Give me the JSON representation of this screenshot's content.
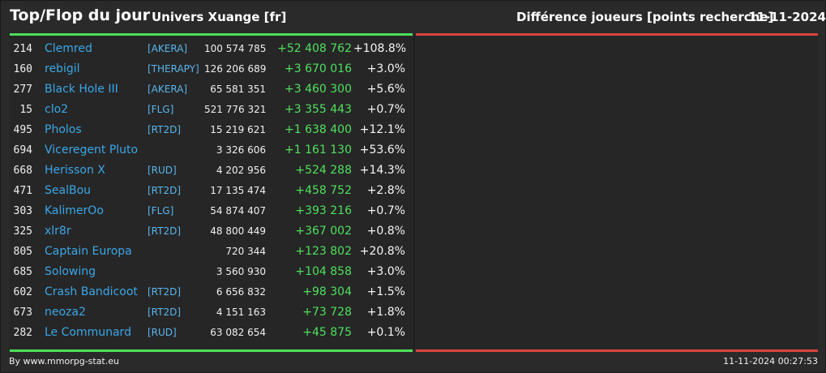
{
  "header": {
    "title": "Top/Flop du jour",
    "universe": "Univers Xuange [fr]",
    "metric": "Différence joueurs [points recherche]",
    "date": "11-11-2024"
  },
  "rows": [
    {
      "rank": "214",
      "name": "Clemred",
      "tag": "[AKERA]",
      "points": "100 574 785",
      "diff": "+52 408 762",
      "pct": "+108.8%"
    },
    {
      "rank": "160",
      "name": "rebigil",
      "tag": "[THERAPY]",
      "points": "126 206 689",
      "diff": "+3 670 016",
      "pct": "+3.0%"
    },
    {
      "rank": "277",
      "name": "Black Hole III",
      "tag": "[AKERA]",
      "points": "65 581 351",
      "diff": "+3 460 300",
      "pct": "+5.6%"
    },
    {
      "rank": "15",
      "name": "clo2",
      "tag": "[FLG]",
      "points": "521 776 321",
      "diff": "+3 355 443",
      "pct": "+0.7%"
    },
    {
      "rank": "495",
      "name": "Pholos",
      "tag": "[RT2D]",
      "points": "15 219 621",
      "diff": "+1 638 400",
      "pct": "+12.1%"
    },
    {
      "rank": "694",
      "name": "Viceregent Pluto",
      "tag": "",
      "points": "3 326 606",
      "diff": "+1 161 130",
      "pct": "+53.6%"
    },
    {
      "rank": "668",
      "name": "Herisson X",
      "tag": "[RUD]",
      "points": "4 202 956",
      "diff": "+524 288",
      "pct": "+14.3%"
    },
    {
      "rank": "471",
      "name": "SealBou",
      "tag": "[RT2D]",
      "points": "17 135 474",
      "diff": "+458 752",
      "pct": "+2.8%"
    },
    {
      "rank": "303",
      "name": "KalimerOo",
      "tag": "[FLG]",
      "points": "54 874 407",
      "diff": "+393 216",
      "pct": "+0.7%"
    },
    {
      "rank": "325",
      "name": "xlr8r",
      "tag": "[RT2D]",
      "points": "48 800 449",
      "diff": "+367 002",
      "pct": "+0.8%"
    },
    {
      "rank": "805",
      "name": "Captain Europa",
      "tag": "",
      "points": "720 344",
      "diff": "+123 802",
      "pct": "+20.8%"
    },
    {
      "rank": "685",
      "name": "Solowing",
      "tag": "",
      "points": "3 560 930",
      "diff": "+104 858",
      "pct": "+3.0%"
    },
    {
      "rank": "602",
      "name": "Crash Bandicoot",
      "tag": "[RT2D]",
      "points": "6 656 832",
      "diff": "+98 304",
      "pct": "+1.5%"
    },
    {
      "rank": "673",
      "name": "neoza2",
      "tag": "[RT2D]",
      "points": "4 151 163",
      "diff": "+73 728",
      "pct": "+1.8%"
    },
    {
      "rank": "282",
      "name": "Le Communard",
      "tag": "[RUD]",
      "points": "63 082 654",
      "diff": "+45 875",
      "pct": "+0.1%"
    }
  ],
  "footer": {
    "credit": "By www.mmorpg-stat.eu",
    "timestamp": "11-11-2024 00:27:53"
  },
  "colors": {
    "top_accent": "#4ce05a",
    "flop_accent": "#d9423c",
    "name_link": "#3ba7e8",
    "gain": "#4fe05e"
  }
}
